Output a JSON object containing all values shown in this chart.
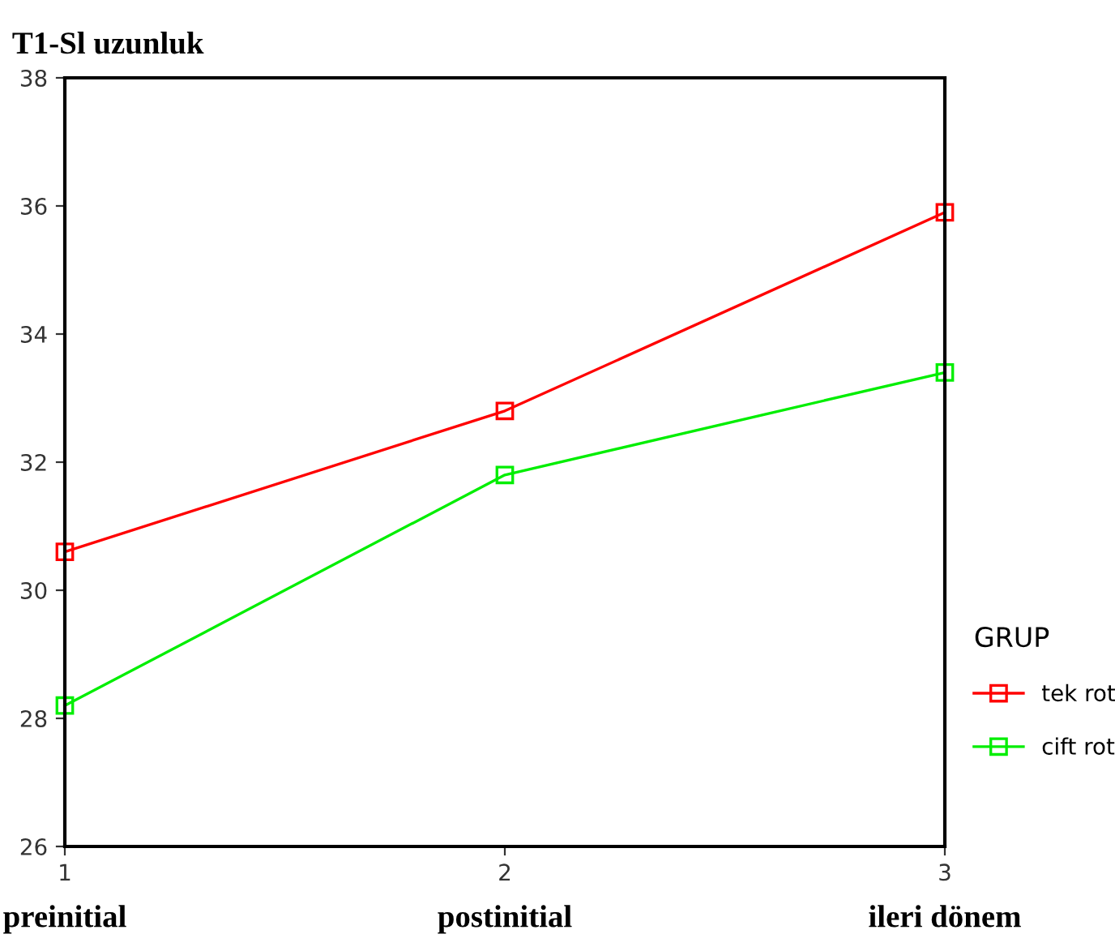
{
  "chart_data": {
    "type": "line",
    "title": "T1-Sl uzunluk",
    "legend_title": "GRUP",
    "legend": "right",
    "marker": "square",
    "grid": false,
    "x": [
      1,
      2,
      3
    ],
    "xlim": [
      1,
      3
    ],
    "xticks": [
      1,
      2,
      3
    ],
    "ylim": [
      26,
      38
    ],
    "yticks": [
      26,
      28,
      30,
      32,
      34,
      36,
      38
    ],
    "series": [
      {
        "name": "tek rot",
        "color": "#ff0000",
        "values": [
          30.6,
          32.8,
          35.9
        ]
      },
      {
        "name": "cift rot",
        "color": "#00ee00",
        "values": [
          28.2,
          31.8,
          33.4
        ]
      }
    ],
    "annotations": [
      "preinitial",
      "postinitial",
      "ileri dönem"
    ]
  }
}
